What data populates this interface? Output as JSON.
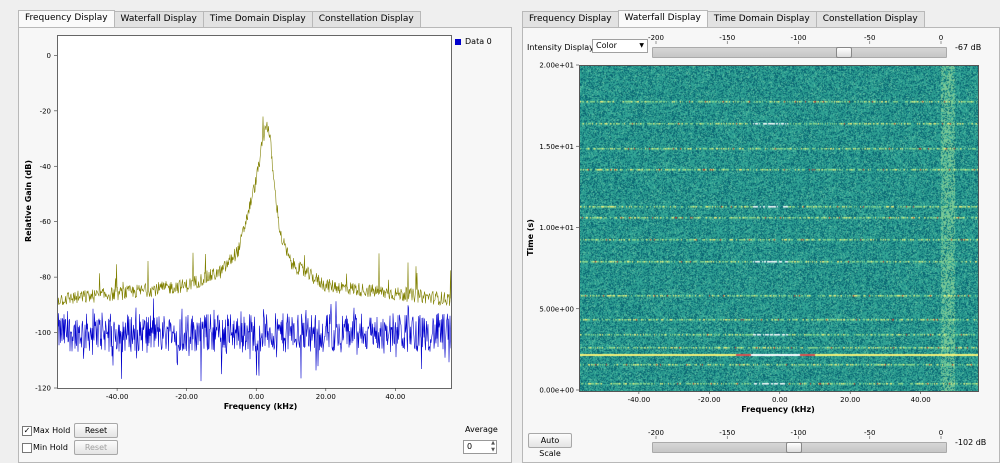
{
  "left": {
    "tabs": [
      "Frequency Display",
      "Waterfall Display",
      "Time Domain Display",
      "Constellation Display"
    ],
    "active_tab": 0,
    "legend": "Data 0",
    "max_hold_label": "Max Hold",
    "max_hold_checked": true,
    "min_hold_label": "Min Hold",
    "min_hold_checked": false,
    "reset_label": "Reset",
    "average_label": "Average",
    "average_value": "0"
  },
  "right": {
    "tabs": [
      "Frequency Display",
      "Waterfall Display",
      "Time Domain Display",
      "Constellation Display"
    ],
    "active_tab": 1,
    "intensity_label": "Intensity Display:",
    "intensity_value": "Color",
    "slider_ticks": [
      "-200",
      "-150",
      "-100",
      "-50",
      "0"
    ],
    "top_slider_value": "-67 dB",
    "top_slider_level": -67,
    "bottom_slider_value": "-102 dB",
    "bottom_slider_level": -102,
    "auto_scale_label": "Auto Scale",
    "colors": {
      "background": "#1f8f8f",
      "hot": "#f6f27a",
      "peak": "#ffffff",
      "red": "#c0392b"
    }
  },
  "chart_data": [
    {
      "type": "line",
      "xlabel": "Frequency (kHz)",
      "ylabel": "Relative Gain (dB)",
      "xlim": [
        -57,
        56
      ],
      "ylim": [
        -120,
        7
      ],
      "xticks": [
        "-40.00",
        "-20.00",
        "0.00",
        "20.00",
        "40.00"
      ],
      "xtick_values": [
        -40,
        -20,
        0,
        20,
        40
      ],
      "yticks": [
        "0",
        "-20",
        "-40",
        "-60",
        "-80",
        "-100",
        "-120"
      ],
      "ytick_values": [
        0,
        -20,
        -40,
        -60,
        -80,
        -100,
        -120
      ],
      "legend": "top-right",
      "series": [
        {
          "name": "Data 0",
          "color": "#0000cc",
          "x": [
            -57,
            -40,
            -20,
            0,
            20,
            40,
            56
          ],
          "y": [
            -100,
            -100,
            -100,
            -100,
            -100,
            -100,
            -100
          ]
        },
        {
          "color": "#808000",
          "x": [
            -57,
            -40,
            -20,
            -10,
            -5,
            0,
            2,
            3,
            4,
            5,
            7,
            10,
            20,
            40,
            56
          ],
          "y": [
            -88,
            -86,
            -83,
            -78,
            -70,
            -45,
            -30,
            -24,
            -30,
            -45,
            -65,
            -75,
            -83,
            -86,
            -88
          ]
        }
      ]
    },
    {
      "type": "heatmap",
      "xlabel": "Frequency (kHz)",
      "ylabel": "Time (s)",
      "xlim": [
        -57,
        56
      ],
      "ylim": [
        0,
        20
      ],
      "xticks": [
        "-40.00",
        "-20.00",
        "0.00",
        "20.00",
        "40.00"
      ],
      "xtick_values": [
        -40,
        -20,
        0,
        20,
        40
      ],
      "yticks": [
        "2.00e+01",
        "1.50e+01",
        "1.00e+01",
        "5.00e+00",
        "0.00e+00"
      ],
      "ytick_values": [
        20,
        15,
        10,
        5,
        0
      ]
    }
  ]
}
